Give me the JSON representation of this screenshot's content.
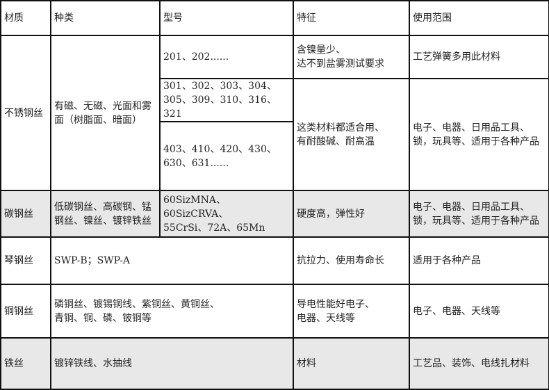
{
  "headers": [
    "材质",
    "种类",
    "型号",
    "特征",
    "使用范围"
  ],
  "stainless": {
    "material": "不锈钢丝",
    "kind": "有磁、无磁、光面和雾面（树脂面、暗面）",
    "models": [
      "201、202......",
      "301、302、303、304、\n305、309、310、316、321",
      "403、410、420、430、\n630、631......"
    ],
    "feature1": "含镍量少、\n达不到盐雾测试要求",
    "usage1": "工艺弹簧多用此材料",
    "feature2": "这类材料都适合用、\n有耐酸碱、耐高温",
    "usage2": "电子、电器、日用品工具、锁，玩具等、适用于各种产品"
  },
  "carbon": {
    "material": "碳钢丝",
    "kind": "低碳钢丝、高碳钢、锰钢丝、镍丝、镀锌铁丝",
    "model": "60SizMNA、60SizCRVA、\n55CrSi、72A、65Mn",
    "feature": "硬度高，弹性好",
    "usage": "电子、电器、日用品工具、锁，玩具等、适用于各种产品"
  },
  "piano": {
    "material": "琴钢丝",
    "kind": "SWP-B；SWP-A",
    "feature": "抗拉力、使用寿命长",
    "usage": "适用于各种产品"
  },
  "copper": {
    "material": "铜钢丝",
    "kind": "磷铜丝、镀锡铜线、紫铜丝、黄铜丝、\n青铜、铜、磷、铍铜等",
    "feature": "导电性能好电子、\n电器、天线等",
    "usage": "电子、电器、天线等"
  },
  "iron": {
    "material": "铁丝",
    "kind": "镀锌铁线、水抽线",
    "feature": "材料",
    "usage": "工艺品、装饰、电线扎材料"
  },
  "colors": {
    "shaded_row": "#e8e8e8",
    "border": "#111111"
  }
}
